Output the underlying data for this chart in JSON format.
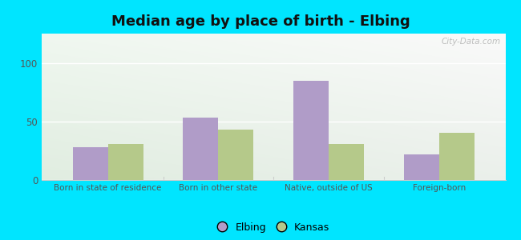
{
  "title": "Median age by place of birth - Elbing",
  "categories": [
    "Born in state of residence",
    "Born in other state",
    "Native, outside of US",
    "Foreign-born"
  ],
  "elbing_values": [
    28,
    53,
    85,
    22
  ],
  "kansas_values": [
    31,
    43,
    31,
    40
  ],
  "elbing_color": "#b09cc8",
  "kansas_color": "#b5c98a",
  "background_outer": "#00e5ff",
  "ylim": [
    0,
    125
  ],
  "yticks": [
    0,
    50,
    100
  ],
  "bar_width": 0.32,
  "title_fontsize": 13,
  "legend_labels": [
    "Elbing",
    "Kansas"
  ],
  "watermark": "City-Data.com",
  "grid_color": "#ffffff",
  "tick_color": "#555555",
  "spine_color": "#cccccc"
}
